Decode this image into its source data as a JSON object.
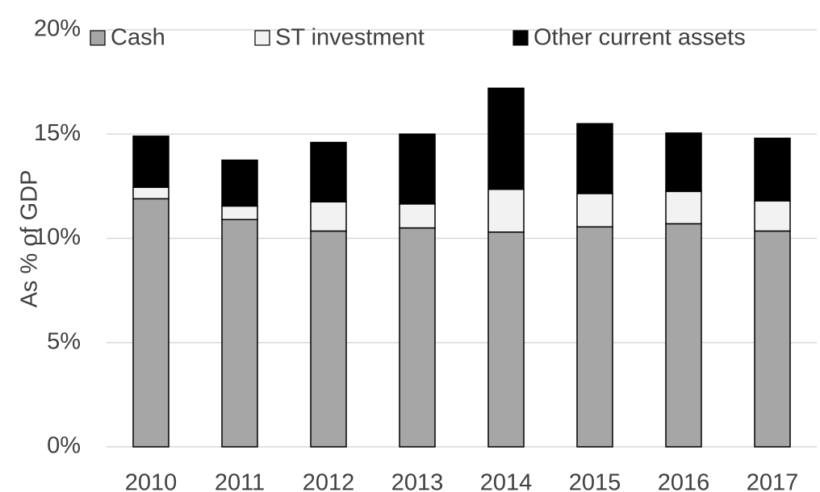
{
  "chart_data": {
    "type": "stacked_bar",
    "y_label": "As % of GDP",
    "categories": [
      "2010",
      "2011",
      "2012",
      "2013",
      "2014",
      "2015",
      "2016",
      "2017"
    ],
    "series": [
      {
        "name": "Cash",
        "color": "#a6a6a6",
        "values": [
          11.9,
          10.9,
          10.35,
          10.5,
          10.3,
          10.55,
          10.7,
          10.35
        ]
      },
      {
        "name": "ST investment",
        "color": "#f2f2f2",
        "values": [
          0.55,
          0.65,
          1.4,
          1.15,
          2.05,
          1.6,
          1.55,
          1.45
        ]
      },
      {
        "name": "Other current assets",
        "color": "#000000",
        "values": [
          2.45,
          2.2,
          2.85,
          3.35,
          4.85,
          3.35,
          2.8,
          3.0
        ]
      }
    ],
    "ylim": [
      0,
      20
    ],
    "yticks": [
      {
        "value": 0,
        "label": "0%"
      },
      {
        "value": 5,
        "label": "5%"
      },
      {
        "value": 10,
        "label": "10%"
      },
      {
        "value": 15,
        "label": "15%"
      },
      {
        "value": 20,
        "label": "20%"
      }
    ],
    "grid": true,
    "legend": "top"
  }
}
